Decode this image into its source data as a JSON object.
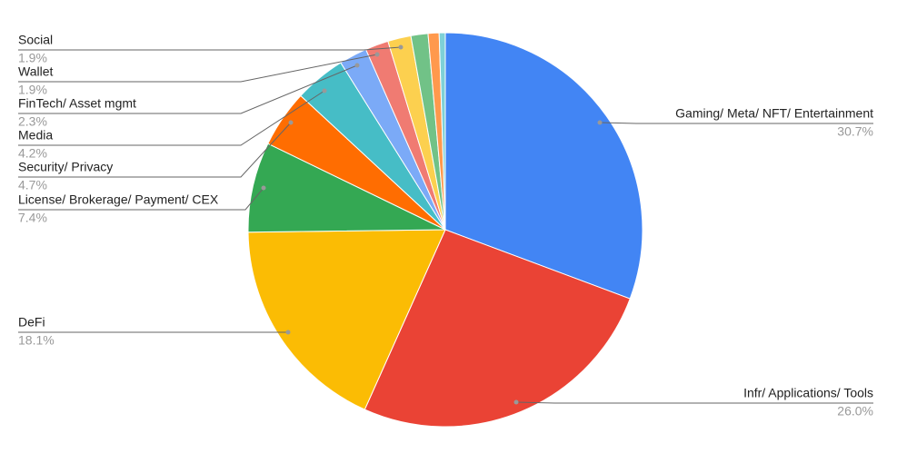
{
  "chart_data": {
    "type": "pie",
    "categories": [
      "Gaming/ Meta/ NFT/ Entertainment",
      "Infr/ Applications/ Tools",
      "DeFi",
      "License/ Brokerage/ Payment/ CEX",
      "Security/ Privacy",
      "Media",
      "FinTech/ Asset mgmt",
      "Wallet",
      "Social",
      null,
      null,
      null
    ],
    "values": [
      30.7,
      26.0,
      18.1,
      7.4,
      4.7,
      4.2,
      2.3,
      1.9,
      1.9,
      1.4,
      0.9,
      0.5
    ],
    "value_labels": [
      "30.7%",
      "26.0%",
      "18.1%",
      "7.4%",
      "4.7%",
      "4.2%",
      "2.3%",
      "1.9%",
      "1.9%",
      null,
      null,
      null
    ],
    "colors": [
      "#4285f4",
      "#ea4335",
      "#fbbc04",
      "#34a853",
      "#ff6d01",
      "#46bdc6",
      "#7baaf7",
      "#f07b72",
      "#fcd04f",
      "#71c287",
      "#ff994d",
      "#7ed1d7"
    ]
  }
}
